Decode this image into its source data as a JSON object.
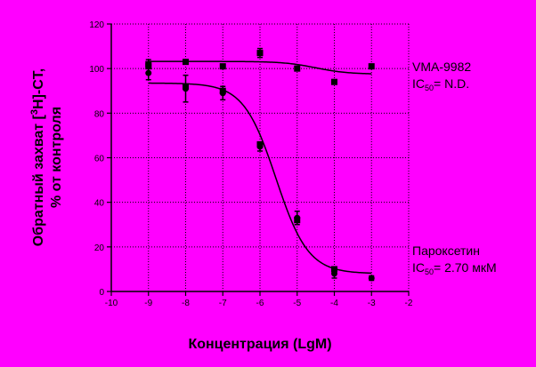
{
  "chart_data": {
    "type": "scatter",
    "xlabel": "Концентрация (LgM)",
    "ylabel_line1": "Обратный захват [",
    "ylabel_sup": "3",
    "ylabel_line1_end": "H]-CT,",
    "ylabel_line2": "% от контроля",
    "xlim": [
      -10,
      -2
    ],
    "ylim": [
      0,
      120
    ],
    "x_ticks": [
      -10,
      -9,
      -8,
      -7,
      -6,
      -5,
      -4,
      -3,
      -2
    ],
    "y_ticks": [
      0,
      20,
      40,
      60,
      80,
      100,
      120
    ],
    "grid": true,
    "series": [
      {
        "name": "VMA-9982",
        "ic50_prefix": "IC",
        "ic50_sub": "50",
        "ic50_value": "= N.D.",
        "marker": "square",
        "points": [
          {
            "x": -9,
            "y": 102,
            "err": 2
          },
          {
            "x": -8,
            "y": 103,
            "err": 1
          },
          {
            "x": -7,
            "y": 101,
            "err": 1
          },
          {
            "x": -6,
            "y": 107,
            "err": 2
          },
          {
            "x": -5,
            "y": 100,
            "err": 1
          },
          {
            "x": -4,
            "y": 94,
            "err": 1
          },
          {
            "x": -3,
            "y": 101,
            "err": 1
          }
        ],
        "fit": {
          "bottom": 97.5,
          "top": 103.2,
          "log_ec50": -4.5,
          "hill": 1
        }
      },
      {
        "name": "Пароксетин",
        "ic50_prefix": "IC",
        "ic50_sub": "50",
        "ic50_value": "= 2.70 мкМ",
        "marker": "circle",
        "points": [
          {
            "x": -9,
            "y": 98,
            "err": 3
          },
          {
            "x": -8,
            "y": 91,
            "err": 6
          },
          {
            "x": -7,
            "y": 89,
            "err": 3
          },
          {
            "x": -6,
            "y": 65,
            "err": 2
          },
          {
            "x": -5,
            "y": 33,
            "err": 3
          },
          {
            "x": -4,
            "y": 8,
            "err": 2
          },
          {
            "x": -3,
            "y": 6,
            "err": 1
          }
        ],
        "secondary_points": [
          {
            "x": -9,
            "y": 101
          },
          {
            "x": -8,
            "y": 92
          },
          {
            "x": -7,
            "y": 90
          },
          {
            "x": -6,
            "y": 66
          },
          {
            "x": -5,
            "y": 32
          },
          {
            "x": -4,
            "y": 10
          }
        ],
        "fit": {
          "bottom": 8,
          "top": 93.5,
          "log_ec50": -5.57,
          "hill": 1
        }
      }
    ]
  }
}
